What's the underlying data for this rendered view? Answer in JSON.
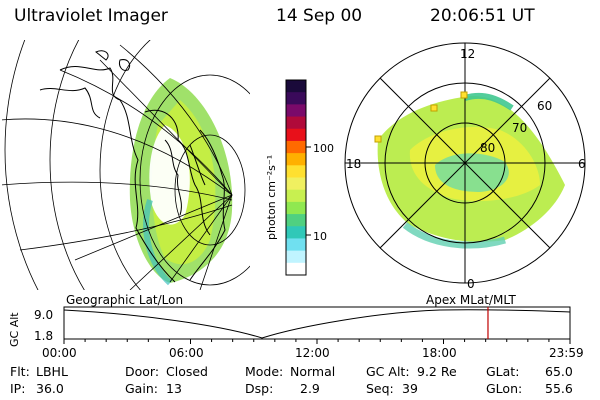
{
  "header": {
    "title": "Ultraviolet Imager",
    "date": "14 Sep 00",
    "time": "20:06:51 UT"
  },
  "colorbar": {
    "label": "photon cm⁻²s⁻¹",
    "tick_upper": "100",
    "tick_lower": "10",
    "colors": [
      "#1a0a3a",
      "#3a0a5a",
      "#7a0a6a",
      "#b00a3a",
      "#e8101a",
      "#ff6a00",
      "#ffb000",
      "#ffe030",
      "#f0f060",
      "#c8f050",
      "#90e850",
      "#50d080",
      "#30c8b8",
      "#70e0f0",
      "#c0f4ff",
      "#ffffff"
    ]
  },
  "polar_plot": {
    "mlt_top": "12",
    "mlt_left": "18",
    "mlt_right": "6",
    "mlt_bottom": "0",
    "lat_60": "60",
    "lat_70": "70",
    "lat_80": "80"
  },
  "timeline": {
    "left_label": "Geographic Lat/Lon",
    "right_label": "Apex  MLat/MLT",
    "y_axis_label": "GC Alt",
    "y_top": "9.0",
    "y_bottom": "1.8",
    "ticks": [
      "00:00",
      "06:00",
      "12:00",
      "18:00",
      "23:59"
    ],
    "current_time_hours": 20.11
  },
  "status": {
    "flt_label": "Flt:",
    "flt_value": "LBHL",
    "door_label": "Door:",
    "door_value": "Closed",
    "mode_label": "Mode:",
    "mode_value": "Normal",
    "gcalt_label": "GC Alt:",
    "gcalt_value": "9.2 Re",
    "glat_label": "GLat:",
    "glat_value": "65.0",
    "ip_label": "IP:",
    "ip_value": "36.0",
    "gain_label": "Gain:",
    "gain_value": "13",
    "dsp_label": "Dsp:",
    "dsp_value": "2.9",
    "seq_label": "Seq:",
    "seq_value": "39",
    "glon_label": "GLon:",
    "glon_value": "55.6"
  }
}
